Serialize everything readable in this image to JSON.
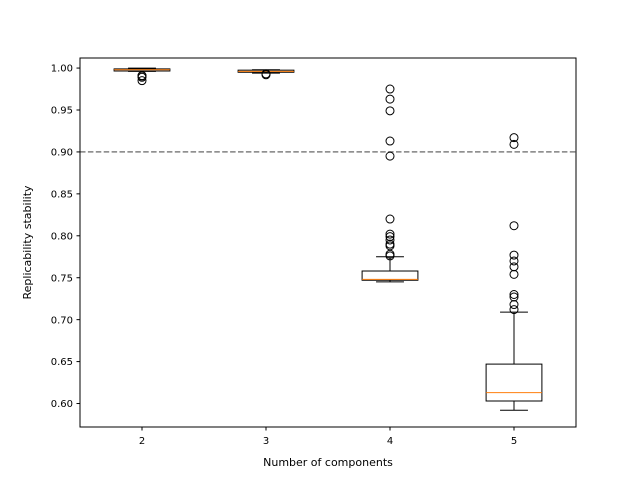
{
  "chart_data": {
    "type": "box",
    "title": "",
    "xlabel": "Number of components",
    "ylabel": "Replicability stability",
    "categories": [
      "2",
      "3",
      "4",
      "5"
    ],
    "ylim": [
      0.572,
      1.012
    ],
    "yticks": [
      "0.60",
      "0.65",
      "0.70",
      "0.75",
      "0.80",
      "0.85",
      "0.90",
      "0.95",
      "1.00"
    ],
    "reference_line": {
      "y": 0.9,
      "style": "dashed",
      "color": "#808080"
    },
    "boxes": [
      {
        "category": "2",
        "whisker_low": 0.996,
        "q1": 0.9965,
        "median": 0.998,
        "q3": 0.999,
        "whisker_high": 1.0,
        "outliers": [
          0.991,
          0.9905,
          0.989,
          0.985
        ]
      },
      {
        "category": "3",
        "whisker_low": 0.994,
        "q1": 0.995,
        "median": 0.996,
        "q3": 0.9975,
        "whisker_high": 0.998,
        "outliers": [
          0.993,
          0.992
        ]
      },
      {
        "category": "4",
        "whisker_low": 0.745,
        "q1": 0.747,
        "median": 0.748,
        "q3": 0.758,
        "whisker_high": 0.775,
        "outliers": [
          0.975,
          0.963,
          0.949,
          0.913,
          0.895,
          0.82,
          0.802,
          0.799,
          0.795,
          0.79,
          0.788,
          0.778,
          0.776
        ]
      },
      {
        "category": "5",
        "whisker_low": 0.592,
        "q1": 0.603,
        "median": 0.613,
        "q3": 0.647,
        "whisker_high": 0.709,
        "outliers": [
          0.917,
          0.909,
          0.812,
          0.777,
          0.77,
          0.763,
          0.754,
          0.73,
          0.727,
          0.718,
          0.712
        ]
      }
    ],
    "colors": {
      "box": "#000000",
      "median": "#ff7f0e",
      "outlier_edge": "#000000",
      "reference": "#808080"
    },
    "grid": false,
    "legend": "none"
  }
}
